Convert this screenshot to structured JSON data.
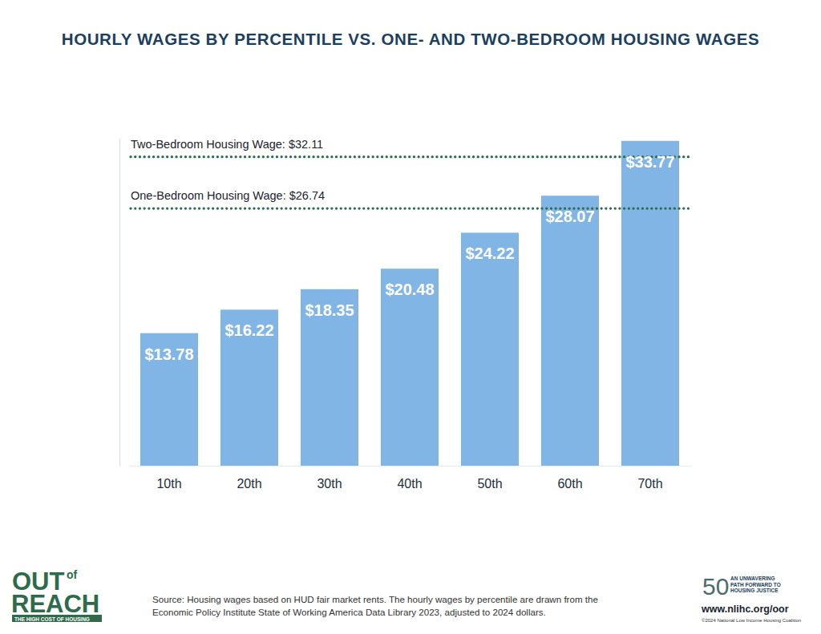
{
  "chart_data": {
    "type": "bar",
    "title": "HOURLY WAGES BY PERCENTILE VS. ONE- AND TWO-BEDROOM HOUSING WAGES",
    "categories": [
      "10th",
      "20th",
      "30th",
      "40th",
      "50th",
      "60th",
      "70th"
    ],
    "values": [
      13.78,
      16.22,
      18.35,
      20.48,
      24.22,
      28.07,
      33.77
    ],
    "value_labels": [
      "$13.78",
      "$16.22",
      "$18.35",
      "$20.48",
      "$24.22",
      "$28.07",
      "$33.77"
    ],
    "color": "#80b5e6",
    "data_labels": true,
    "tick_labels": "x",
    "ylim": [
      0,
      34
    ],
    "yticks": [],
    "annotations": [
      {
        "text": "Two-Bedroom Housing Wage: $32.11",
        "value": 32.11
      },
      {
        "text": "One-Bedroom Housing Wage: $26.74",
        "value": 26.74
      }
    ]
  },
  "footer": {
    "logo": [
      "OUT",
      "of",
      "REACH"
    ],
    "logo_tagline": "THE HIGH COST OF HOUSING",
    "source": [
      "Source: Housing wages based on HUD fair market rents. The hourly wages by percentile are drawn from the",
      "Economic Policy Institute State of Working America Data Library 2023, adjusted to 2024 dollars."
    ],
    "badge": "50",
    "badge_text": [
      "AN UNWAVERING",
      "PATH FORWARD TO",
      "HOUSING JUSTICE"
    ],
    "url": "www.nlihc.org/oor",
    "copyright": "©2024 National Low Income Housing Coalition"
  }
}
